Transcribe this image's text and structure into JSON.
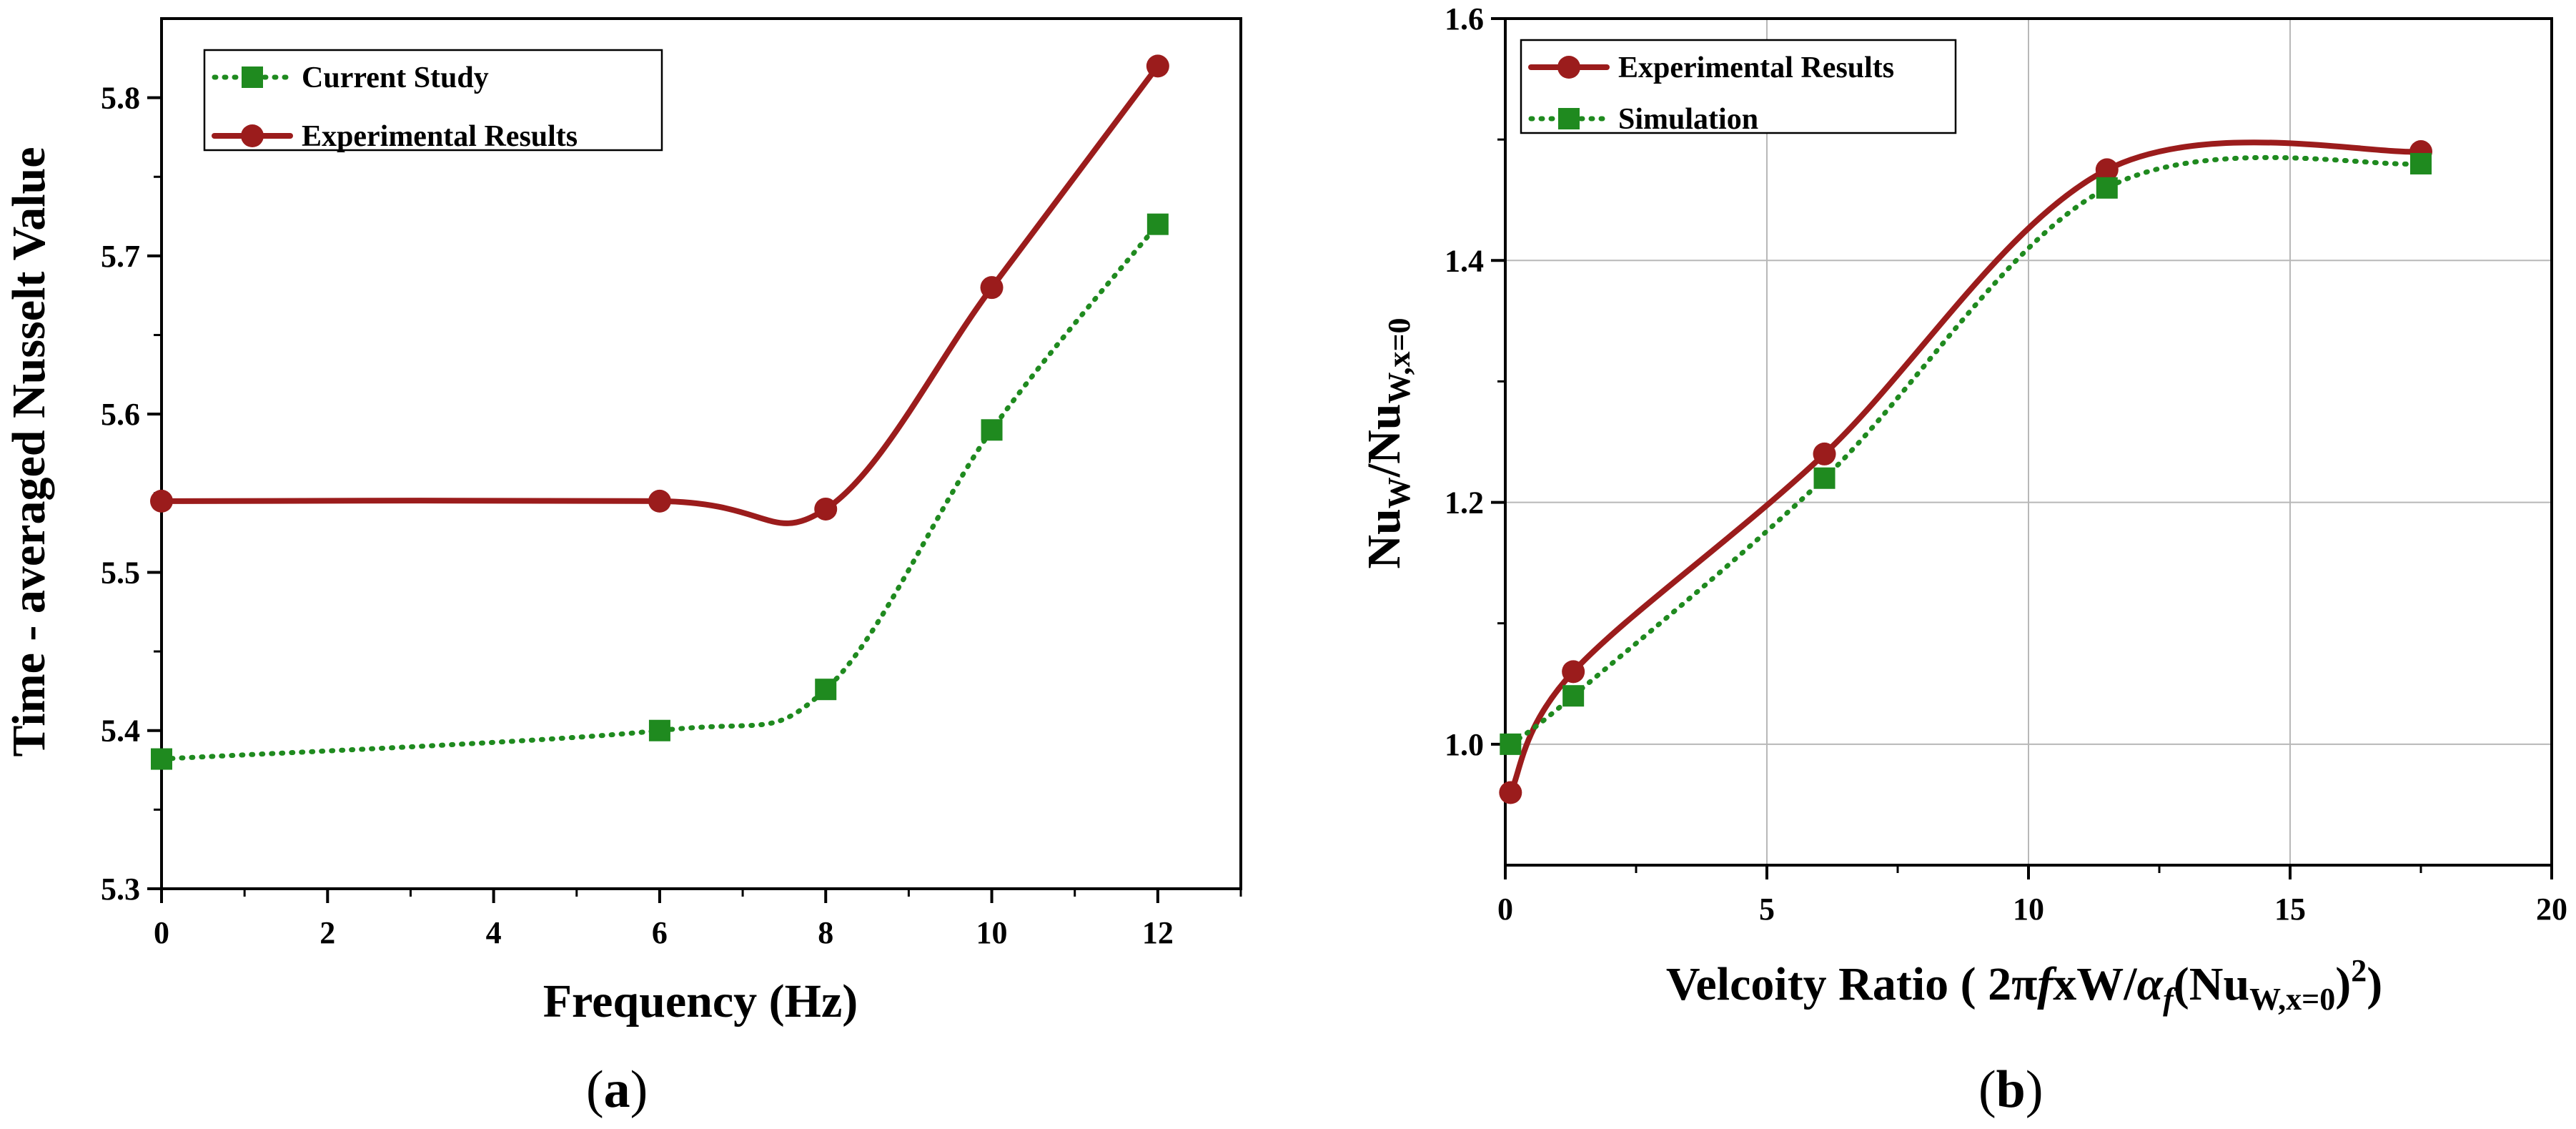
{
  "colors": {
    "experimental": "#9b1c1c",
    "simulation": "#1f8a1f",
    "axis": "#000000",
    "grid": "#b8b8b8"
  },
  "chart_data": [
    {
      "panel": "(a)",
      "type": "line",
      "xlabel": "Frequency (Hz)",
      "ylabel": "Time - averaged Nusselt Value",
      "xlim": [
        0,
        13
      ],
      "ylim": [
        5.3,
        5.85
      ],
      "xticks": [
        "0",
        "2",
        "4",
        "6",
        "8",
        "10",
        "12"
      ],
      "yticks": [
        "5.3",
        "5.4",
        "5.5",
        "5.6",
        "5.7",
        "5.8"
      ],
      "grid": false,
      "legend_position": "top-left",
      "series": [
        {
          "name": "Current Study",
          "style": "dotted",
          "marker": "square",
          "color": "#1f8a1f",
          "x": [
            0,
            6,
            8,
            10,
            12
          ],
          "values": [
            5.382,
            5.4,
            5.426,
            5.59,
            5.72
          ]
        },
        {
          "name": "Experimental Results",
          "style": "solid",
          "marker": "circle",
          "color": "#9b1c1c",
          "x": [
            0,
            6,
            8,
            10,
            12
          ],
          "values": [
            5.545,
            5.545,
            5.54,
            5.68,
            5.82
          ]
        }
      ]
    },
    {
      "panel": "(b)",
      "type": "line",
      "xlabel": "Velcoity Ratio ( 2πfxW/αf(NuW,x=0)2)",
      "ylabel": "NuW/NuW,x=0",
      "xlim": [
        0,
        20
      ],
      "ylim": [
        0.9,
        1.6
      ],
      "xticks": [
        "0",
        "5",
        "10",
        "15",
        "20"
      ],
      "yticks": [
        "1.0",
        "1.2",
        "1.4",
        "1.6"
      ],
      "grid": true,
      "legend_position": "top-left",
      "series": [
        {
          "name": "Experimental Results",
          "style": "solid",
          "marker": "circle",
          "color": "#9b1c1c",
          "x": [
            0.1,
            1.3,
            6.1,
            11.5,
            17.5
          ],
          "values": [
            0.96,
            1.06,
            1.24,
            1.475,
            1.49
          ]
        },
        {
          "name": "Simulation",
          "style": "dotted",
          "marker": "square",
          "color": "#1f8a1f",
          "x": [
            0.1,
            1.3,
            6.1,
            11.5,
            17.5
          ],
          "values": [
            1.0,
            1.04,
            1.22,
            1.46,
            1.48
          ]
        }
      ]
    }
  ],
  "text": {
    "a": {
      "xlabel": "Frequency (Hz)",
      "ylabel": "Time - averaged Nusselt Value",
      "panel_label_open": "(",
      "panel_label_letter": "a",
      "panel_label_close": ")"
    },
    "b": {
      "xlabel_part1": "Velcoity Ratio ( 2π",
      "xlabel_f": "f",
      "xlabel_part2": "xW/",
      "xlabel_alpha": "α",
      "xlabel_alpha_sub": "f",
      "xlabel_part3": "(Nu",
      "xlabel_sub": "W,x=0",
      "xlabel_part4": ")",
      "xlabel_sup": "2",
      "xlabel_part5": ")",
      "ylabel_nu1": "Nu",
      "ylabel_sub1": "W",
      "ylabel_slash": "/Nu",
      "ylabel_sub2": "W,x=0",
      "panel_label_open": "(",
      "panel_label_letter": "b",
      "panel_label_close": ")"
    }
  }
}
